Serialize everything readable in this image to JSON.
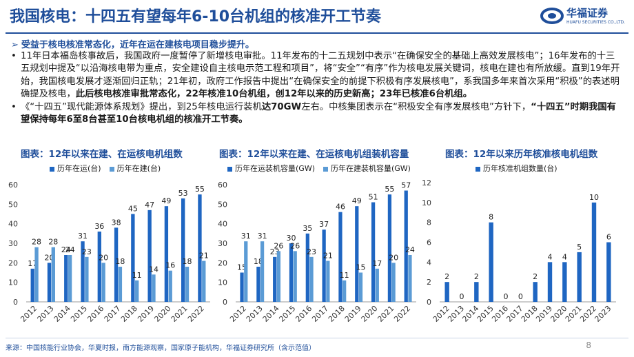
{
  "header": {
    "title": "我国核电：十四五有望每年6-10台机组的核准开工节奏",
    "logo_text": "华福证券",
    "logo_sub": "HUAFU SECURITIES CO.,LTD."
  },
  "lead": "受益于核电核准常态化，近年在运在建核电项目稳步提升。",
  "paragraphs": [
    {
      "parts": [
        {
          "text": "11年日本福岛核事故后，我国政府一度暂停了新增核电审批。11年发布的十二五规划中表示“在确保安全的基础上高效发展核电”；16年发布的十三五规划中提及“以沿海核电带为重点，安全建设自主核电示范工程和项目”，将“安全”“有序”作为核电发展关键词，核电在建也有所放缓。直到19年开始，我国核电发展才逐渐回归正轨；21年初，政府工作报告中提出“在确保安全的前提下积极有序发展核电”，系我国多年来首次采用“积极”的表述明确提及核电，",
          "bold": false
        },
        {
          "text": "此后核电核准审批常态化，22年核准10台机组，创12年以来的历史新高；23年已核准6台机组。",
          "bold": true
        }
      ]
    },
    {
      "parts": [
        {
          "text": "《“十四五”现代能源体系规划》提出，到25年核电运行装机",
          "bold": false
        },
        {
          "text": "达70GW",
          "bold": true
        },
        {
          "text": "左右。中核集团表示在“积极安全有序发展核电”方针下，",
          "bold": false
        },
        {
          "text": "“十四五”时期我国有望保持每年6至8台甚至10台核电机组的核准开工节奏。",
          "bold": true
        }
      ]
    }
  ],
  "chart_titles": [
    "图表：12年以来在建、在运核电机组数",
    "图表：12年以来在建、在运核电机组装机容量",
    "图表：12年以来历年核准核电机组数"
  ],
  "colors": {
    "primary": "#1f66c2",
    "secondary": "#5b9bd5",
    "brand": "#1f4e9a"
  },
  "chart_data": [
    {
      "type": "bar",
      "title": "图表：12年以来在建、在运核电机组数",
      "categories": [
        "2012",
        "2013",
        "2014",
        "2015",
        "2016",
        "2017",
        "2018",
        "2019",
        "2020",
        "2021",
        "2022"
      ],
      "series": [
        {
          "name": "历年在运(台)",
          "values": [
            17,
            20,
            24,
            31,
            36,
            38,
            45,
            47,
            49,
            53,
            55
          ]
        },
        {
          "name": "历年在建(台)",
          "values": [
            28,
            28,
            24,
            23,
            20,
            18,
            11,
            14,
            16,
            18,
            21
          ]
        }
      ],
      "ylim": [
        0,
        60
      ],
      "yticks": [
        0,
        10,
        20,
        30,
        40,
        50,
        60
      ]
    },
    {
      "type": "bar",
      "title": "图表：12年以来在建、在运核电机组装机容量",
      "categories": [
        "2012",
        "2013",
        "2014",
        "2015",
        "2016",
        "2017",
        "2018",
        "2019",
        "2020",
        "2021",
        "2022"
      ],
      "series": [
        {
          "name": "历年在运装机容量(GW)",
          "values": [
            15,
            18,
            23,
            30,
            35,
            37,
            46,
            49,
            51,
            55,
            57
          ]
        },
        {
          "name": "历年在建装机容量(GW)",
          "values": [
            31,
            31,
            26,
            26,
            23,
            21,
            11,
            15,
            17,
            20,
            24
          ]
        }
      ],
      "ylim": [
        0,
        60
      ],
      "yticks": [
        0,
        10,
        20,
        30,
        40,
        50,
        60
      ]
    },
    {
      "type": "bar",
      "title": "图表：12年以来历年核准核电机组数",
      "categories": [
        "2012",
        "2013",
        "2014",
        "2015",
        "2016",
        "2017",
        "2018",
        "2019",
        "2020",
        "2021",
        "2022",
        "2023"
      ],
      "series": [
        {
          "name": "历年核准机组数量(台)",
          "values": [
            2,
            0,
            2,
            8,
            0,
            0,
            2,
            4,
            4,
            5,
            10,
            6
          ]
        }
      ],
      "ylim": [
        0,
        12
      ],
      "yticks": [
        0,
        2,
        4,
        6,
        8,
        10,
        12
      ]
    }
  ],
  "footer": "来源：中国核能行业协会，华夏时报，南方能源观察，国家原子能机构，华福证券研究所（含示范值）",
  "page_number": "8"
}
